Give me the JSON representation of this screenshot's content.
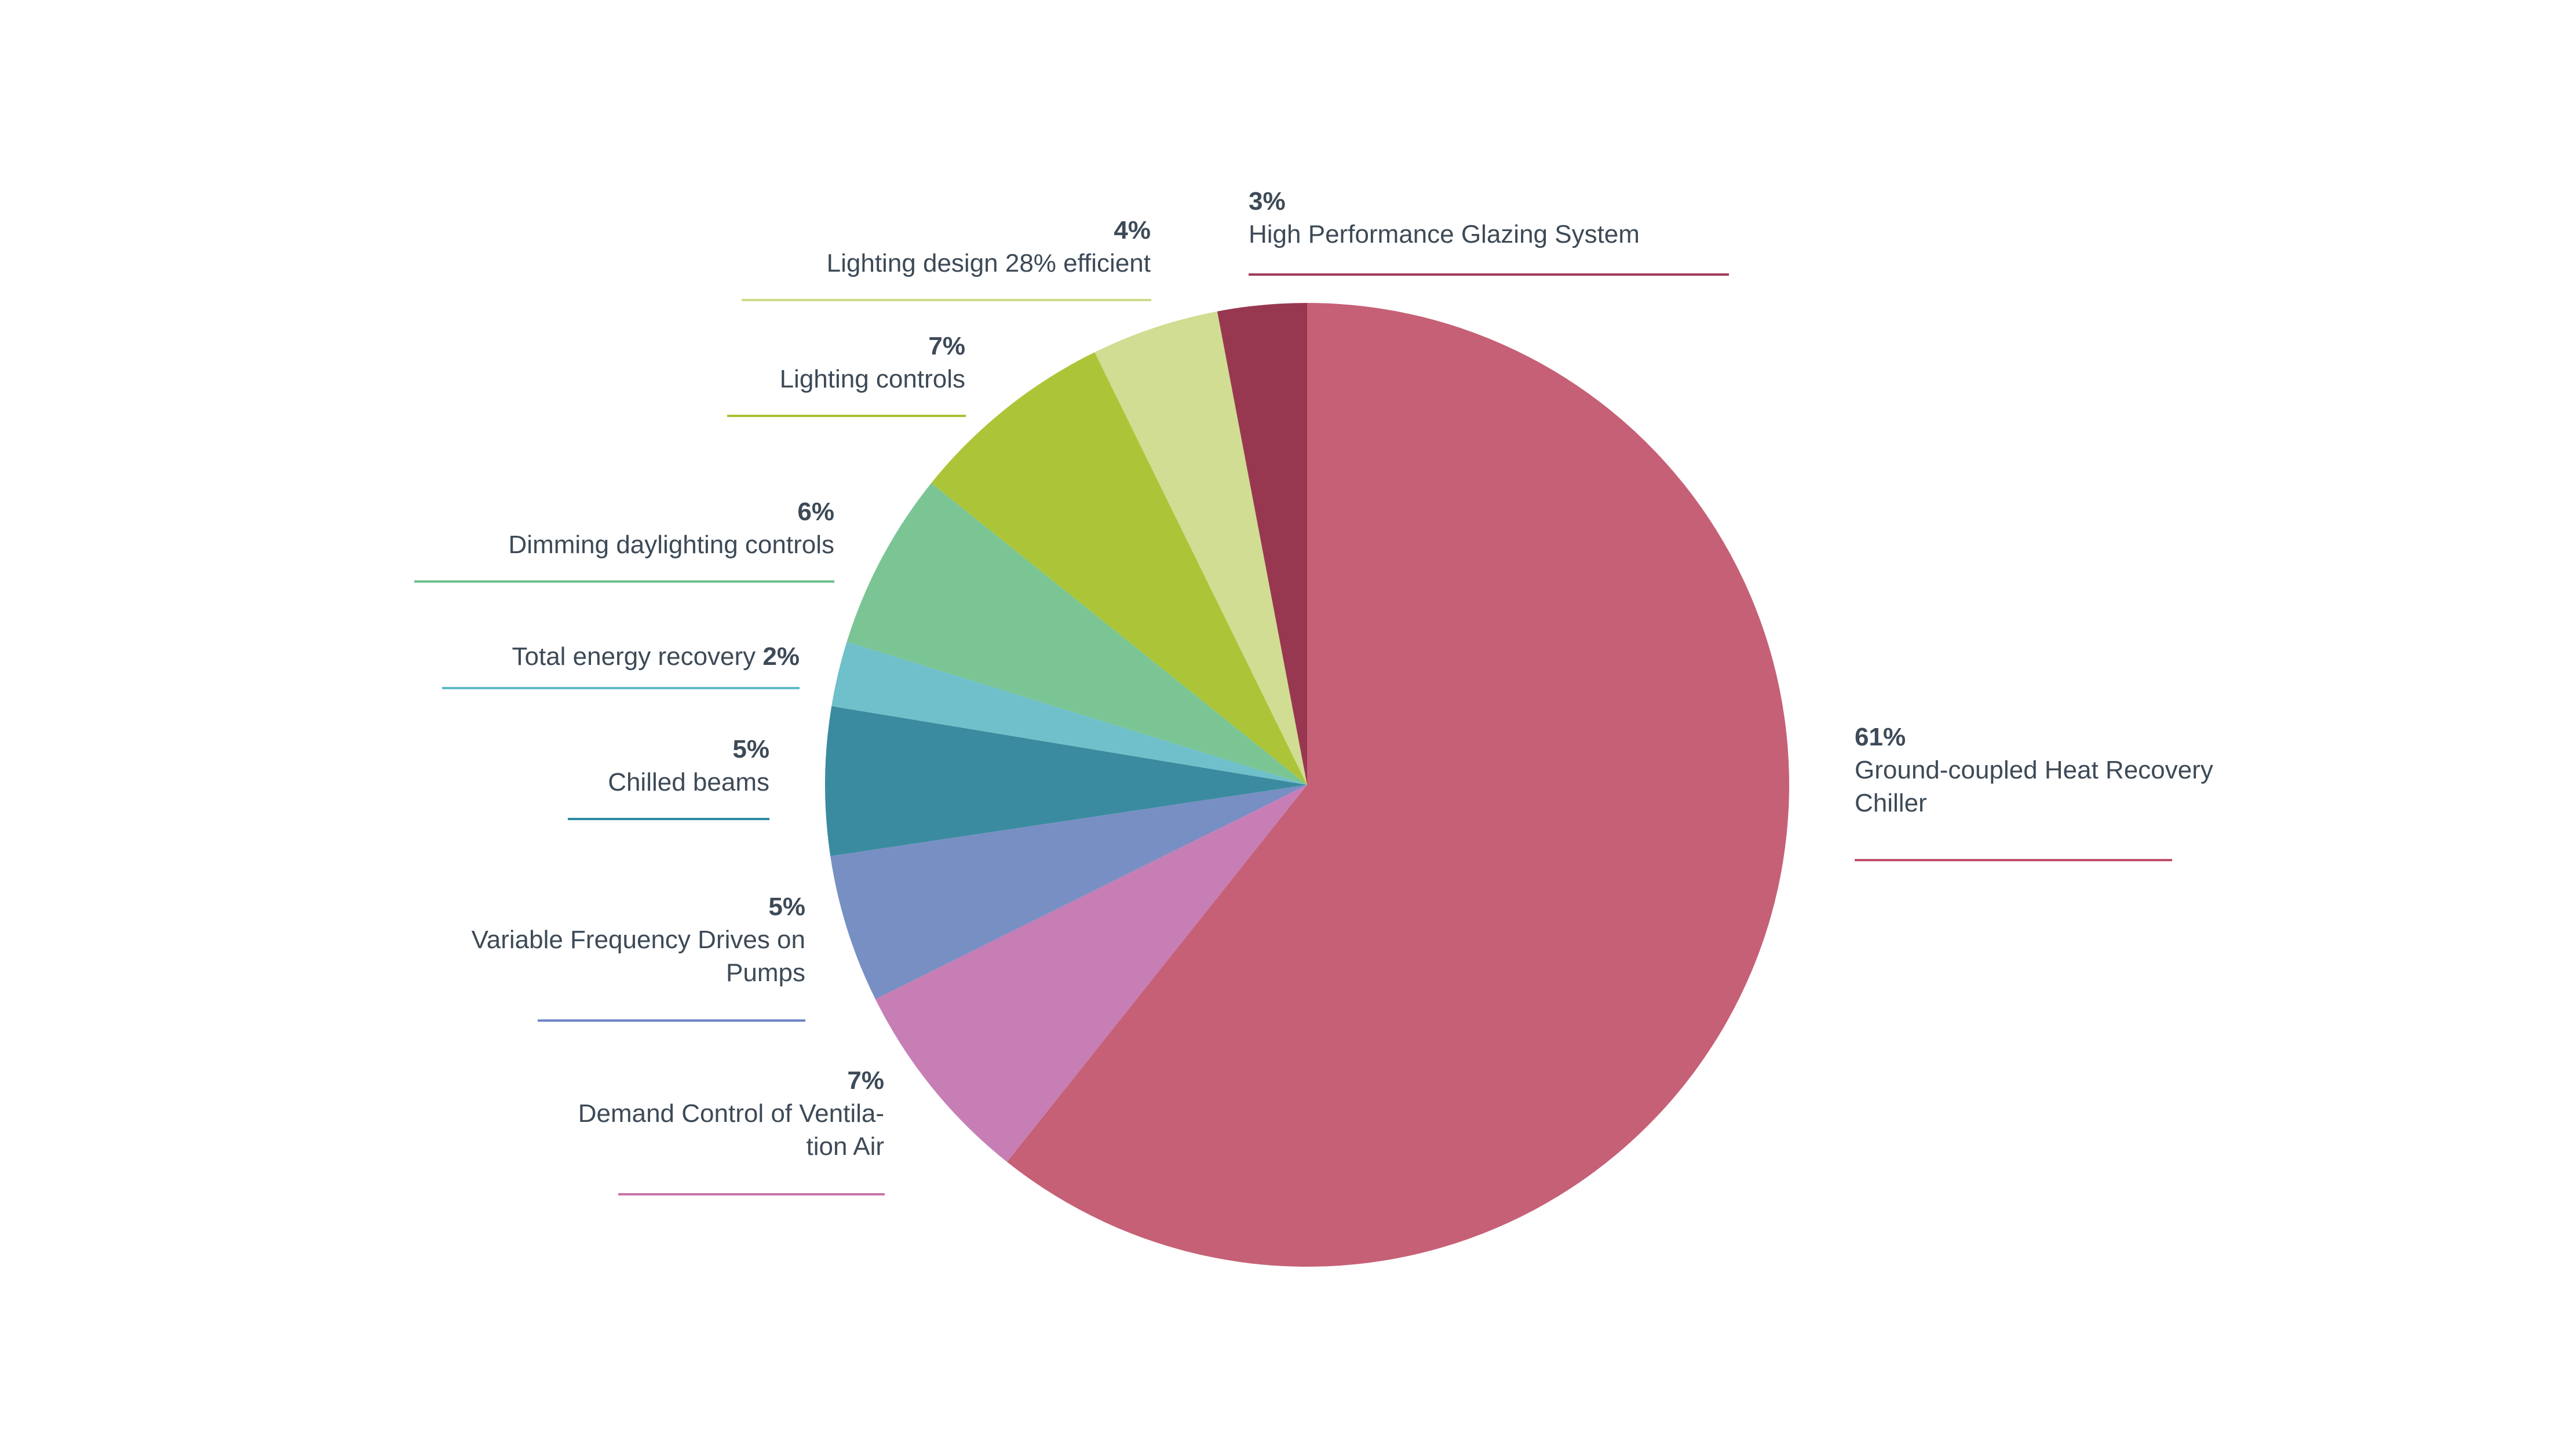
{
  "chart_data": {
    "type": "pie",
    "start_angle_deg": 0,
    "direction": "clockwise",
    "slices": [
      {
        "id": "ground",
        "percent_label": "61%",
        "value": 61,
        "label": "Ground-coupled Heat Recovery Chiller",
        "color": "#c66076",
        "rule_color": "#c0506c"
      },
      {
        "id": "demand",
        "percent_label": "7%",
        "value": 7,
        "label": "Demand Control of Ventila-tion Air",
        "color": "#c77eb5",
        "rule_color": "#c873a9"
      },
      {
        "id": "vfd",
        "percent_label": "5%",
        "value": 5,
        "label": "Variable Frequency Drives on Pumps",
        "color": "#788fc4",
        "rule_color": "#6d86c4"
      },
      {
        "id": "chilled",
        "percent_label": "5%",
        "value": 5,
        "label": "Chilled beams",
        "color": "#3a8ba0",
        "rule_color": "#2f8aa3"
      },
      {
        "id": "ter",
        "percent_label": "2%",
        "value": 2.2,
        "label": "Total energy recovery",
        "color": "#6fc0ca",
        "rule_color": "#5fbac8"
      },
      {
        "id": "dimming",
        "percent_label": "6%",
        "value": 6,
        "label": "Dimming daylighting controls",
        "color": "#7bc594",
        "rule_color": "#6cc18c"
      },
      {
        "id": "lctrl",
        "percent_label": "7%",
        "value": 7,
        "label": "Lighting controls",
        "color": "#acc538",
        "rule_color": "#a6c232"
      },
      {
        "id": "ldesign",
        "percent_label": "4%",
        "value": 4.3,
        "label": "Lighting design 28% efficient",
        "color": "#d0dd92",
        "rule_color": "#cbdc8a"
      },
      {
        "id": "glazing",
        "percent_label": "3%",
        "value": 3,
        "label": "High Performance Glazing System",
        "color": "#983850",
        "rule_color": "#a13a57"
      }
    ]
  }
}
